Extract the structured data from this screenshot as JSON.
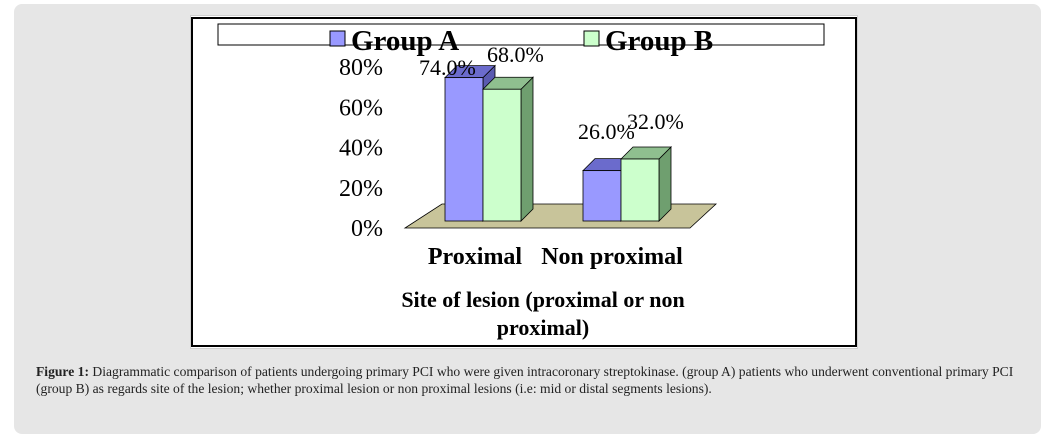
{
  "chart_data": {
    "type": "bar",
    "categories": [
      "Proximal",
      "Non proximal"
    ],
    "series": [
      {
        "name": "Group A",
        "values": [
          74.0,
          26.0
        ],
        "color": "#9999ff",
        "labels": [
          "74.0%",
          "26.0%"
        ]
      },
      {
        "name": "Group B",
        "values": [
          68.0,
          32.0
        ],
        "color": "#ccffcc",
        "labels": [
          "68.0%",
          "32.0%"
        ]
      }
    ],
    "xlabel": "Site of lesion (proximal or non proximal)",
    "xlabel_lines": [
      "Site of lesion (proximal or non",
      "proximal)"
    ],
    "ylabel": "",
    "ylim": [
      0,
      80
    ],
    "yticks": [
      "0%",
      "20%",
      "40%",
      "60%",
      "80%"
    ],
    "yticks_values": [
      0,
      20,
      40,
      60,
      80
    ],
    "legend": [
      "Group A",
      "Group B"
    ],
    "legend_position": "top",
    "floor_color": "#c8c49a"
  },
  "caption": {
    "label": "Figure 1:",
    "text": "Diagrammatic comparison of patients undergoing primary PCI who were given intracoronary streptokinase. (group A) patients who underwent conventional primary PCI (group B) as regards site of the lesion; whether proximal lesion or non proximal lesions (i.e: mid or distal segments lesions)."
  }
}
